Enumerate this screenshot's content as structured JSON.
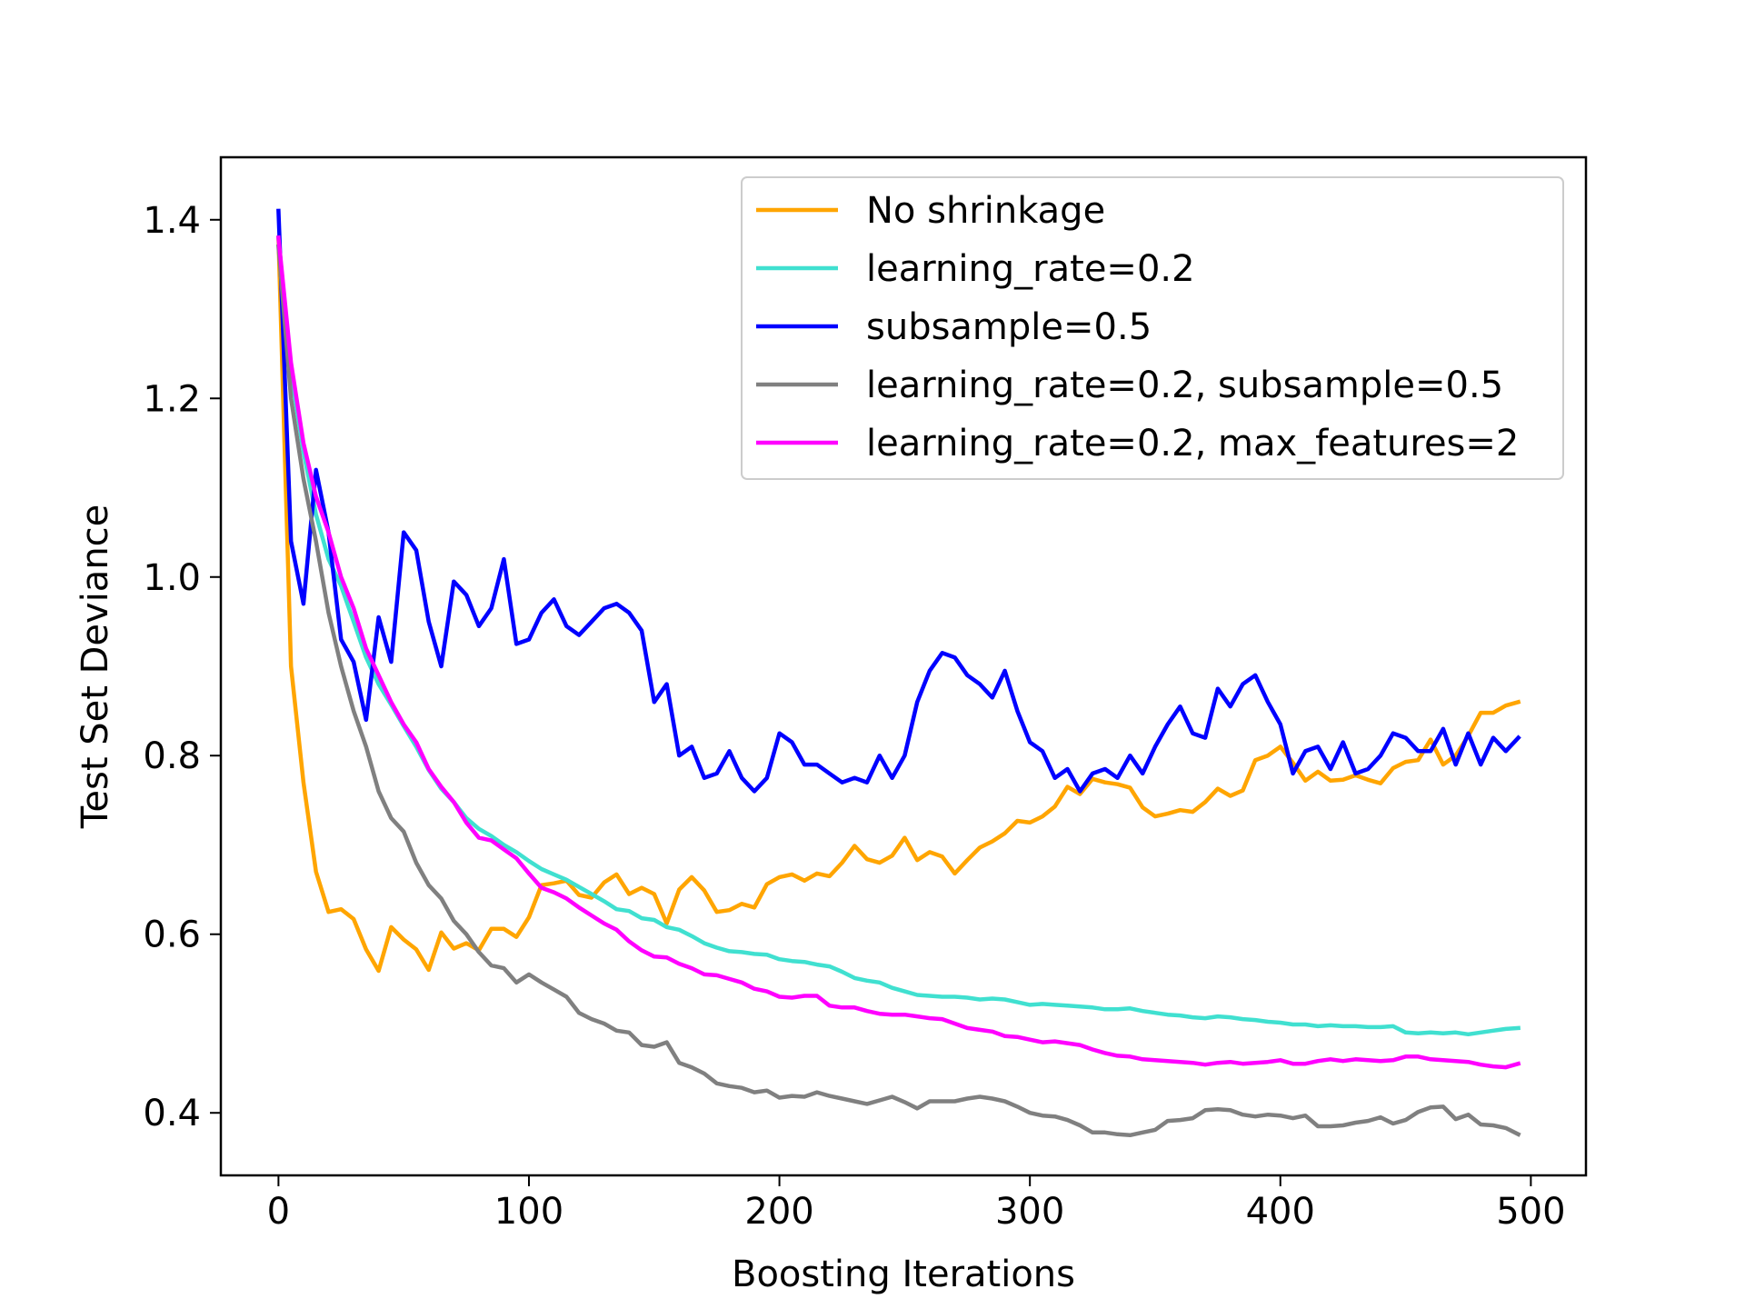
{
  "chart_data": {
    "type": "line",
    "title": "",
    "xlabel": "Boosting Iterations",
    "ylabel": "Test Set Deviance",
    "xlim": [
      -23,
      522
    ],
    "ylim": [
      0.33,
      1.47
    ],
    "xticks": [
      0,
      100,
      200,
      300,
      400,
      500
    ],
    "xtick_labels": [
      "0",
      "100",
      "200",
      "300",
      "400",
      "500"
    ],
    "yticks": [
      0.4,
      0.6,
      0.8,
      1.0,
      1.2,
      1.4
    ],
    "ytick_labels": [
      "0.4",
      "0.6",
      "0.8",
      "1.0",
      "1.2",
      "1.4"
    ],
    "grid": false,
    "legend_position": "top-right",
    "x": [
      0,
      5,
      10,
      15,
      20,
      25,
      30,
      35,
      40,
      45,
      50,
      55,
      60,
      65,
      70,
      75,
      80,
      85,
      90,
      95,
      100,
      105,
      110,
      115,
      120,
      125,
      130,
      135,
      140,
      145,
      150,
      155,
      160,
      165,
      170,
      175,
      180,
      185,
      190,
      195,
      200,
      205,
      210,
      215,
      220,
      225,
      230,
      235,
      240,
      245,
      250,
      255,
      260,
      265,
      270,
      275,
      280,
      285,
      290,
      295,
      300,
      305,
      310,
      315,
      320,
      325,
      330,
      335,
      340,
      345,
      350,
      355,
      360,
      365,
      370,
      375,
      380,
      385,
      390,
      395,
      400,
      405,
      410,
      415,
      420,
      425,
      430,
      435,
      440,
      445,
      450,
      455,
      460,
      465,
      470,
      475,
      480,
      485,
      490,
      495
    ],
    "series": [
      {
        "name": "No shrinkage",
        "color": "#ffa500",
        "values": [
          1.38,
          0.9,
          0.77,
          0.67,
          0.625,
          0.628,
          0.617,
          0.583,
          0.559,
          0.608,
          0.594,
          0.583,
          0.56,
          0.602,
          0.584,
          0.59,
          0.582,
          0.606,
          0.606,
          0.597,
          0.619,
          0.655,
          0.657,
          0.66,
          0.644,
          0.641,
          0.658,
          0.667,
          0.645,
          0.652,
          0.645,
          0.612,
          0.65,
          0.664,
          0.649,
          0.625,
          0.627,
          0.634,
          0.63,
          0.656,
          0.664,
          0.667,
          0.66,
          0.668,
          0.665,
          0.68,
          0.699,
          0.684,
          0.68,
          0.688,
          0.708,
          0.683,
          0.692,
          0.687,
          0.668,
          0.683,
          0.697,
          0.704,
          0.713,
          0.727,
          0.725,
          0.732,
          0.743,
          0.765,
          0.757,
          0.774,
          0.77,
          0.768,
          0.764,
          0.742,
          0.732,
          0.735,
          0.739,
          0.737,
          0.748,
          0.763,
          0.755,
          0.761,
          0.795,
          0.8,
          0.81,
          0.792,
          0.772,
          0.782,
          0.772,
          0.773,
          0.778,
          0.773,
          0.769,
          0.786,
          0.793,
          0.795,
          0.818,
          0.79,
          0.8,
          0.822,
          0.848,
          0.848,
          0.856,
          0.86
        ]
      },
      {
        "name": "learning_rate=0.2",
        "color": "#40e0d0",
        "values": [
          1.38,
          1.23,
          1.14,
          1.07,
          1.02,
          0.99,
          0.95,
          0.91,
          0.88,
          0.857,
          0.833,
          0.81,
          0.784,
          0.763,
          0.748,
          0.73,
          0.718,
          0.71,
          0.7,
          0.692,
          0.682,
          0.673,
          0.667,
          0.661,
          0.653,
          0.645,
          0.637,
          0.628,
          0.626,
          0.618,
          0.616,
          0.608,
          0.605,
          0.598,
          0.59,
          0.585,
          0.581,
          0.58,
          0.578,
          0.577,
          0.572,
          0.57,
          0.569,
          0.566,
          0.564,
          0.558,
          0.551,
          0.548,
          0.546,
          0.54,
          0.536,
          0.532,
          0.531,
          0.53,
          0.53,
          0.529,
          0.527,
          0.528,
          0.527,
          0.524,
          0.521,
          0.522,
          0.521,
          0.52,
          0.519,
          0.518,
          0.516,
          0.516,
          0.517,
          0.514,
          0.512,
          0.51,
          0.509,
          0.507,
          0.506,
          0.508,
          0.507,
          0.505,
          0.504,
          0.502,
          0.501,
          0.499,
          0.499,
          0.497,
          0.498,
          0.497,
          0.497,
          0.496,
          0.496,
          0.497,
          0.49,
          0.489,
          0.49,
          0.489,
          0.49,
          0.488,
          0.49,
          0.492,
          0.494,
          0.495
        ]
      },
      {
        "name": "subsample=0.5",
        "color": "#0000ff",
        "values": [
          1.41,
          1.04,
          0.97,
          1.12,
          1.05,
          0.93,
          0.905,
          0.84,
          0.955,
          0.905,
          1.05,
          1.03,
          0.95,
          0.9,
          0.995,
          0.98,
          0.945,
          0.965,
          1.02,
          0.925,
          0.93,
          0.96,
          0.975,
          0.945,
          0.935,
          0.95,
          0.965,
          0.97,
          0.96,
          0.94,
          0.86,
          0.88,
          0.8,
          0.81,
          0.775,
          0.78,
          0.805,
          0.775,
          0.76,
          0.775,
          0.825,
          0.815,
          0.79,
          0.79,
          0.78,
          0.77,
          0.775,
          0.77,
          0.8,
          0.775,
          0.8,
          0.86,
          0.895,
          0.915,
          0.91,
          0.89,
          0.88,
          0.865,
          0.895,
          0.85,
          0.815,
          0.805,
          0.775,
          0.785,
          0.76,
          0.78,
          0.785,
          0.775,
          0.8,
          0.78,
          0.81,
          0.835,
          0.855,
          0.825,
          0.82,
          0.875,
          0.855,
          0.88,
          0.89,
          0.86,
          0.835,
          0.78,
          0.805,
          0.81,
          0.785,
          0.815,
          0.78,
          0.785,
          0.8,
          0.825,
          0.82,
          0.805,
          0.805,
          0.83,
          0.79,
          0.825,
          0.79,
          0.82,
          0.805,
          0.82
        ]
      },
      {
        "name": "learning_rate=0.2, subsample=0.5",
        "color": "#808080",
        "values": [
          1.37,
          1.2,
          1.11,
          1.04,
          0.96,
          0.9,
          0.85,
          0.81,
          0.76,
          0.73,
          0.715,
          0.68,
          0.655,
          0.64,
          0.615,
          0.6,
          0.58,
          0.565,
          0.562,
          0.546,
          0.555,
          0.546,
          0.538,
          0.53,
          0.512,
          0.505,
          0.5,
          0.492,
          0.49,
          0.476,
          0.474,
          0.479,
          0.456,
          0.451,
          0.444,
          0.433,
          0.43,
          0.428,
          0.423,
          0.425,
          0.417,
          0.419,
          0.418,
          0.423,
          0.419,
          0.416,
          0.413,
          0.41,
          0.414,
          0.418,
          0.412,
          0.405,
          0.413,
          0.413,
          0.413,
          0.416,
          0.418,
          0.416,
          0.413,
          0.407,
          0.4,
          0.397,
          0.396,
          0.392,
          0.386,
          0.378,
          0.378,
          0.376,
          0.375,
          0.378,
          0.381,
          0.391,
          0.392,
          0.394,
          0.403,
          0.404,
          0.403,
          0.398,
          0.396,
          0.398,
          0.397,
          0.394,
          0.397,
          0.385,
          0.385,
          0.386,
          0.389,
          0.391,
          0.395,
          0.388,
          0.392,
          0.401,
          0.406,
          0.407,
          0.393,
          0.398,
          0.387,
          0.386,
          0.383,
          0.376
        ]
      },
      {
        "name": "learning_rate=0.2, max_features=2",
        "color": "#ff00ff",
        "values": [
          1.38,
          1.24,
          1.15,
          1.09,
          1.05,
          1.0,
          0.965,
          0.92,
          0.89,
          0.86,
          0.835,
          0.815,
          0.785,
          0.765,
          0.748,
          0.725,
          0.708,
          0.705,
          0.695,
          0.685,
          0.668,
          0.652,
          0.647,
          0.64,
          0.63,
          0.621,
          0.612,
          0.605,
          0.592,
          0.582,
          0.575,
          0.574,
          0.567,
          0.562,
          0.555,
          0.554,
          0.55,
          0.546,
          0.539,
          0.536,
          0.53,
          0.529,
          0.531,
          0.531,
          0.52,
          0.518,
          0.518,
          0.514,
          0.511,
          0.51,
          0.51,
          0.508,
          0.506,
          0.505,
          0.5,
          0.495,
          0.493,
          0.491,
          0.486,
          0.485,
          0.482,
          0.479,
          0.48,
          0.478,
          0.476,
          0.471,
          0.467,
          0.464,
          0.463,
          0.46,
          0.459,
          0.458,
          0.457,
          0.456,
          0.454,
          0.456,
          0.457,
          0.455,
          0.456,
          0.457,
          0.459,
          0.455,
          0.455,
          0.458,
          0.46,
          0.458,
          0.46,
          0.459,
          0.458,
          0.459,
          0.463,
          0.463,
          0.46,
          0.459,
          0.458,
          0.457,
          0.454,
          0.452,
          0.451,
          0.455
        ]
      }
    ]
  }
}
